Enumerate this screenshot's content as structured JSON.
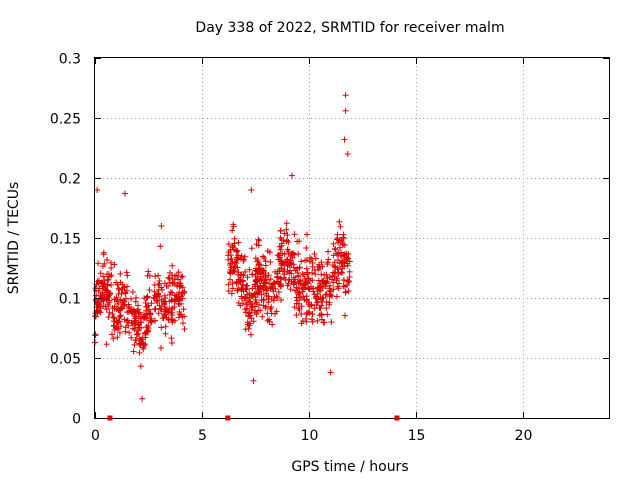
{
  "chart_data": {
    "type": "scatter",
    "title": "Day 338 of 2022, SRMTID for receiver malm",
    "xlabel": "GPS time / hours",
    "ylabel": "SRMTID / TECUs",
    "xlim": [
      0,
      24
    ],
    "ylim": [
      0,
      0.3
    ],
    "x_ticks": [
      0,
      5,
      10,
      15,
      20
    ],
    "x_tick_labels": [
      "0",
      "5",
      "10",
      "15",
      "20"
    ],
    "y_ticks": [
      0,
      0.05,
      0.1,
      0.15,
      0.2,
      0.25,
      0.3
    ],
    "y_tick_labels": [
      "0",
      "0.05",
      "0.1",
      "0.15",
      "0.2",
      "0.25",
      "0.3"
    ],
    "grid": true,
    "marker_color": "#dd0000",
    "axis_markers_x": [
      0.7,
      6.2,
      14.1
    ],
    "series": [
      {
        "name": "SRMTID",
        "segments": [
          {
            "x_start": 0.0,
            "x_end": 4.2,
            "y_center": 0.09,
            "y_spread": 0.035,
            "y_min": 0.016,
            "y_max": 0.19,
            "count": 420
          },
          {
            "x_start": 6.2,
            "x_end": 11.9,
            "y_center": 0.115,
            "y_spread": 0.035,
            "y_min": 0.03,
            "y_max": 0.27,
            "count": 620
          }
        ],
        "peaks": [
          {
            "x": 0.1,
            "y": 0.19
          },
          {
            "x": 1.4,
            "y": 0.187
          },
          {
            "x": 2.2,
            "y": 0.016
          },
          {
            "x": 3.1,
            "y": 0.16
          },
          {
            "x": 7.3,
            "y": 0.19
          },
          {
            "x": 9.2,
            "y": 0.202
          },
          {
            "x": 11.7,
            "y": 0.269
          },
          {
            "x": 11.7,
            "y": 0.256
          },
          {
            "x": 11.65,
            "y": 0.232
          },
          {
            "x": 11.8,
            "y": 0.22
          },
          {
            "x": 7.4,
            "y": 0.031
          },
          {
            "x": 11.0,
            "y": 0.038
          }
        ]
      }
    ]
  }
}
